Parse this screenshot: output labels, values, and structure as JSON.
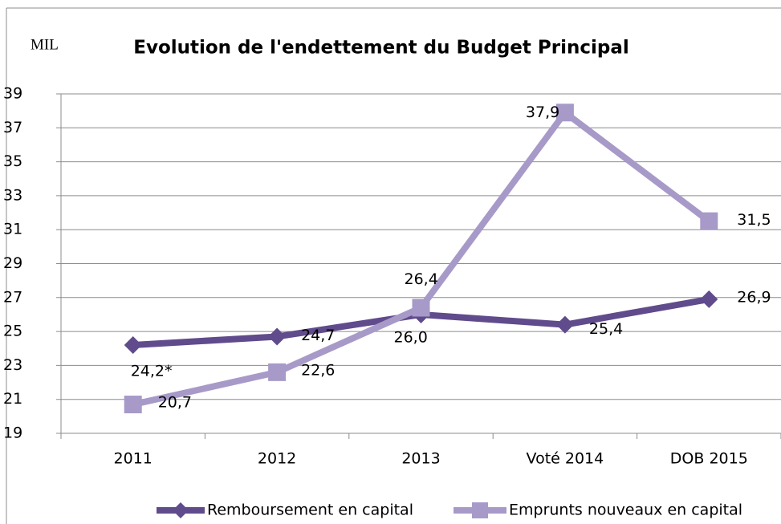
{
  "chart_data": {
    "type": "line",
    "title": "Evolution de l'endettement du Budget Principal",
    "unit_label": "MIL",
    "categories": [
      "2011",
      "2012",
      "2013",
      "Voté 2014",
      "DOB 2015"
    ],
    "series": [
      {
        "name": "Remboursement en capital",
        "color": "#604b8c",
        "marker": "diamond",
        "values": [
          24.2,
          24.7,
          26.0,
          25.4,
          26.9
        ],
        "value_labels": [
          "24,2*",
          "24,7",
          "26,0",
          "25,4",
          "26,9"
        ]
      },
      {
        "name": "Emprunts nouveaux en capital",
        "color": "#a79ac8",
        "marker": "square",
        "values": [
          20.7,
          22.6,
          26.4,
          37.9,
          31.5
        ],
        "value_labels": [
          "20,7",
          "22,6",
          "26,4",
          "37,9",
          "31,5"
        ]
      }
    ],
    "ylim": [
      19,
      39
    ],
    "yticks": [
      19,
      21,
      23,
      25,
      27,
      29,
      31,
      33,
      35,
      37,
      39
    ],
    "grid": true
  }
}
